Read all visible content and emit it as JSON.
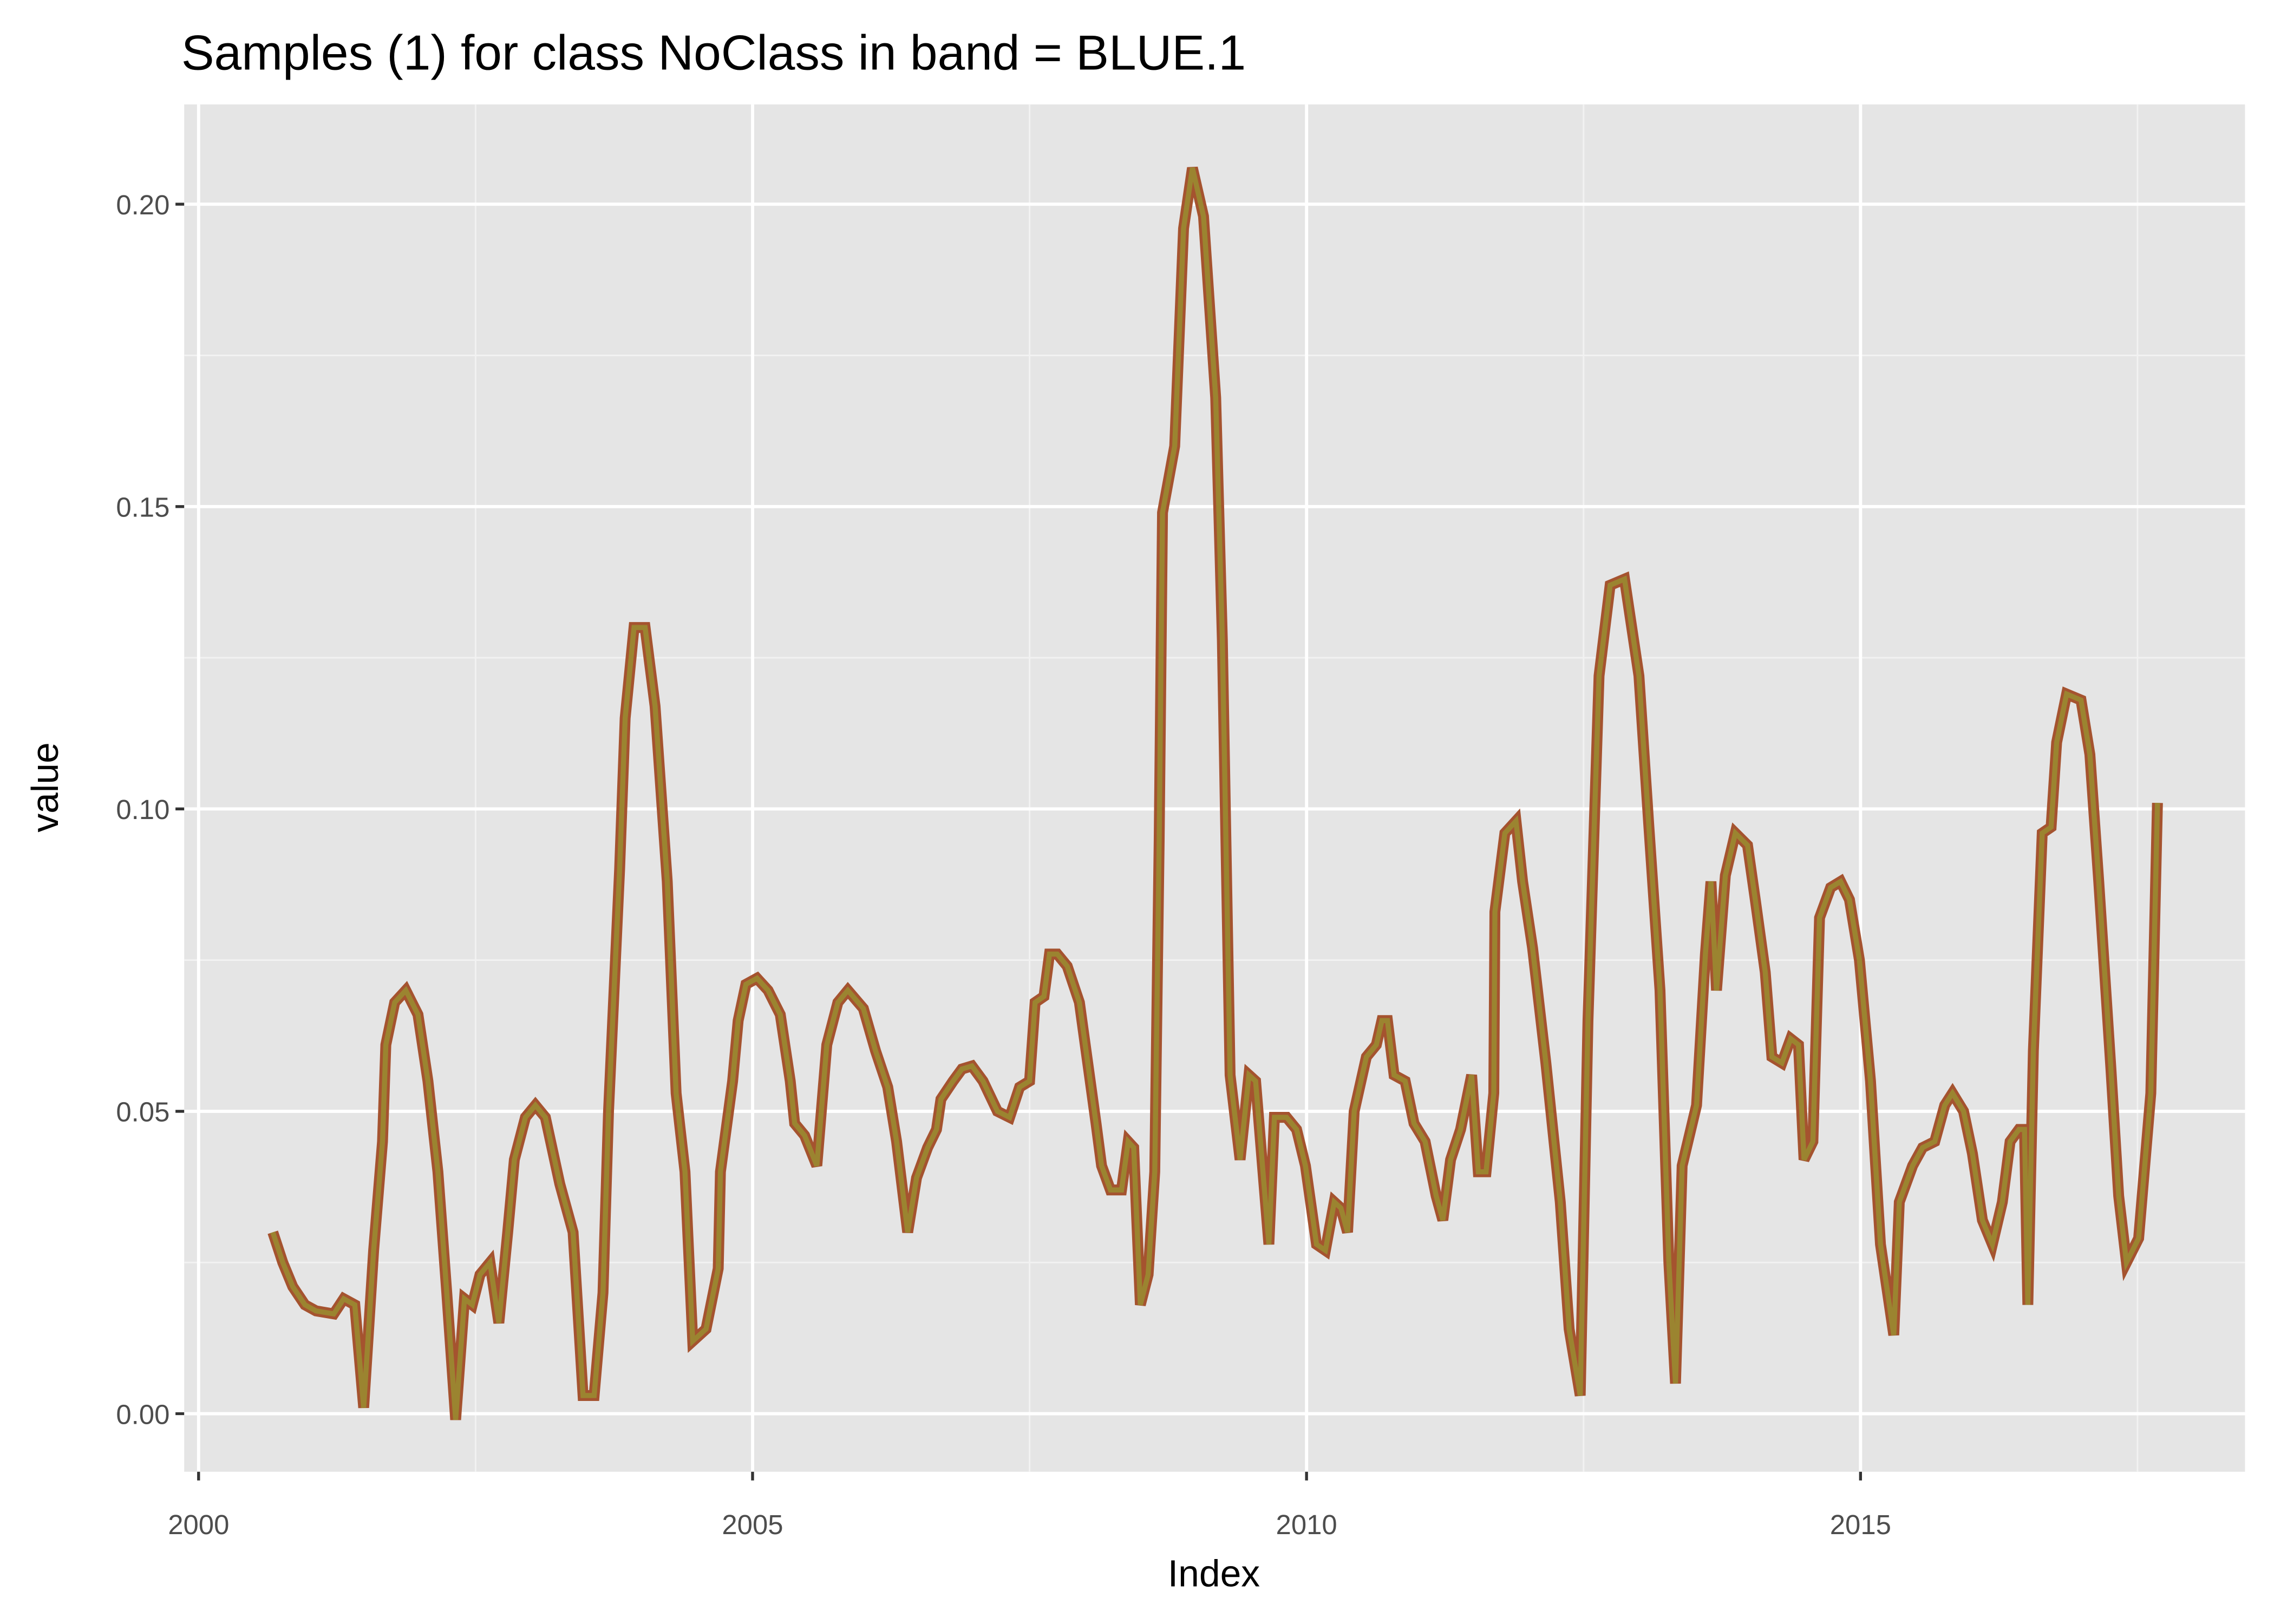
{
  "chart_data": {
    "type": "line",
    "title": "Samples (1) for class NoClass in band = BLUE.1",
    "xlabel": "Index",
    "ylabel": "value",
    "x": [
      2000.67,
      2000.76,
      2000.85,
      2000.96,
      2001.06,
      2001.22,
      2001.31,
      2001.41,
      2001.49,
      2001.58,
      2001.66,
      2001.69,
      2001.77,
      2001.87,
      2001.98,
      2002.07,
      2002.16,
      2002.24,
      2002.32,
      2002.4,
      2002.47,
      2002.54,
      2002.63,
      2002.71,
      2002.79,
      2002.85,
      2002.95,
      2003.04,
      2003.13,
      2003.26,
      2003.38,
      2003.47,
      2003.57,
      2003.65,
      2003.7,
      2003.8,
      2003.85,
      2003.93,
      2004.03,
      2004.12,
      2004.23,
      2004.31,
      2004.39,
      2004.46,
      2004.58,
      2004.69,
      2004.71,
      2004.82,
      2004.87,
      2004.94,
      2005.04,
      2005.14,
      2005.25,
      2005.34,
      2005.38,
      2005.47,
      2005.58,
      2005.67,
      2005.77,
      2005.86,
      2006.0,
      2006.11,
      2006.22,
      2006.3,
      2006.4,
      2006.48,
      2006.58,
      2006.66,
      2006.7,
      2006.81,
      2006.89,
      2006.98,
      2007.08,
      2007.21,
      2007.32,
      2007.41,
      2007.5,
      2007.55,
      2007.63,
      2007.68,
      2007.75,
      2007.84,
      2007.95,
      2008.01,
      2008.1,
      2008.15,
      2008.23,
      2008.33,
      2008.39,
      2008.44,
      2008.5,
      2008.57,
      2008.63,
      2008.67,
      2008.7,
      2008.81,
      2008.89,
      2008.97,
      2009.07,
      2009.18,
      2009.24,
      2009.31,
      2009.4,
      2009.48,
      2009.54,
      2009.66,
      2009.71,
      2009.82,
      2009.91,
      2009.99,
      2010.09,
      2010.17,
      2010.25,
      2010.31,
      2010.37,
      2010.43,
      2010.54,
      2010.63,
      2010.68,
      2010.73,
      2010.79,
      2010.89,
      2010.97,
      2011.07,
      2011.17,
      2011.23,
      2011.3,
      2011.39,
      2011.49,
      2011.55,
      2011.62,
      2011.69,
      2011.7,
      2011.79,
      2011.89,
      2011.95,
      2012.04,
      2012.16,
      2012.29,
      2012.37,
      2012.47,
      2012.54,
      2012.64,
      2012.74,
      2012.87,
      2013.0,
      2013.09,
      2013.19,
      2013.27,
      2013.33,
      2013.39,
      2013.52,
      2013.6,
      2013.65,
      2013.7,
      2013.78,
      2013.87,
      2013.98,
      2014.05,
      2014.14,
      2014.2,
      2014.29,
      2014.37,
      2014.44,
      2014.49,
      2014.57,
      2014.63,
      2014.73,
      2014.82,
      2014.9,
      2014.99,
      2015.09,
      2015.18,
      2015.3,
      2015.35,
      2015.47,
      2015.56,
      2015.67,
      2015.76,
      2015.83,
      2015.93,
      2016.01,
      2016.1,
      2016.19,
      2016.28,
      2016.35,
      2016.43,
      2016.48,
      2016.51,
      2016.56,
      2016.64,
      2016.72,
      2016.77,
      2016.86,
      2016.99,
      2017.07,
      2017.15,
      2017.26,
      2017.33,
      2017.4,
      2017.51,
      2017.62,
      2017.68
    ],
    "series": [
      {
        "color": "#9b8430",
        "outline_color": "#a5532f",
        "values": [
          0.03,
          0.025,
          0.021,
          0.018,
          0.017,
          0.0165,
          0.019,
          0.018,
          0.001,
          0.027,
          0.045,
          0.061,
          0.068,
          0.07,
          0.066,
          0.055,
          0.04,
          0.02,
          -0.001,
          0.019,
          0.018,
          0.023,
          0.025,
          0.015,
          0.03,
          0.042,
          0.049,
          0.051,
          0.049,
          0.038,
          0.03,
          0.003,
          0.003,
          0.02,
          0.05,
          0.09,
          0.115,
          0.13,
          0.13,
          0.117,
          0.088,
          0.053,
          0.04,
          0.012,
          0.014,
          0.024,
          0.04,
          0.055,
          0.065,
          0.071,
          0.072,
          0.07,
          0.066,
          0.055,
          0.048,
          0.046,
          0.041,
          0.061,
          0.068,
          0.07,
          0.067,
          0.06,
          0.054,
          0.045,
          0.03,
          0.039,
          0.044,
          0.047,
          0.052,
          0.055,
          0.057,
          0.0575,
          0.055,
          0.05,
          0.049,
          0.054,
          0.055,
          0.068,
          0.069,
          0.076,
          0.076,
          0.074,
          0.068,
          0.06,
          0.048,
          0.041,
          0.037,
          0.037,
          0.045,
          0.044,
          0.018,
          0.023,
          0.04,
          0.095,
          0.149,
          0.16,
          0.196,
          0.206,
          0.198,
          0.168,
          0.128,
          0.056,
          0.042,
          0.056,
          0.055,
          0.028,
          0.049,
          0.049,
          0.047,
          0.041,
          0.028,
          0.027,
          0.035,
          0.034,
          0.03,
          0.05,
          0.059,
          0.061,
          0.065,
          0.065,
          0.056,
          0.055,
          0.048,
          0.045,
          0.036,
          0.032,
          0.042,
          0.047,
          0.056,
          0.04,
          0.04,
          0.053,
          0.083,
          0.096,
          0.098,
          0.088,
          0.077,
          0.058,
          0.035,
          0.014,
          0.003,
          0.065,
          0.122,
          0.137,
          0.138,
          0.122,
          0.097,
          0.07,
          0.025,
          0.005,
          0.041,
          0.051,
          0.076,
          0.088,
          0.07,
          0.089,
          0.096,
          0.094,
          0.085,
          0.073,
          0.059,
          0.058,
          0.062,
          0.061,
          0.042,
          0.045,
          0.082,
          0.087,
          0.088,
          0.085,
          0.075,
          0.055,
          0.028,
          0.013,
          0.035,
          0.041,
          0.044,
          0.045,
          0.051,
          0.053,
          0.05,
          0.043,
          0.032,
          0.028,
          0.035,
          0.045,
          0.047,
          0.047,
          0.018,
          0.06,
          0.096,
          0.097,
          0.111,
          0.119,
          0.118,
          0.109,
          0.088,
          0.057,
          0.036,
          0.025,
          0.029,
          0.053,
          0.101
        ]
      }
    ],
    "xlim": [
      1999.87,
      2018.47
    ],
    "ylim": [
      -0.0096,
      0.2165
    ],
    "xticks": [
      2000,
      2005,
      2010,
      2015
    ],
    "yticks": [
      {
        "value": 0,
        "label": "0.00"
      },
      {
        "value": 0.05,
        "label": "0.05"
      },
      {
        "value": 0.1,
        "label": "0.10"
      },
      {
        "value": 0.15,
        "label": "0.15"
      },
      {
        "value": 0.2,
        "label": "0.20"
      }
    ],
    "grid": true
  }
}
